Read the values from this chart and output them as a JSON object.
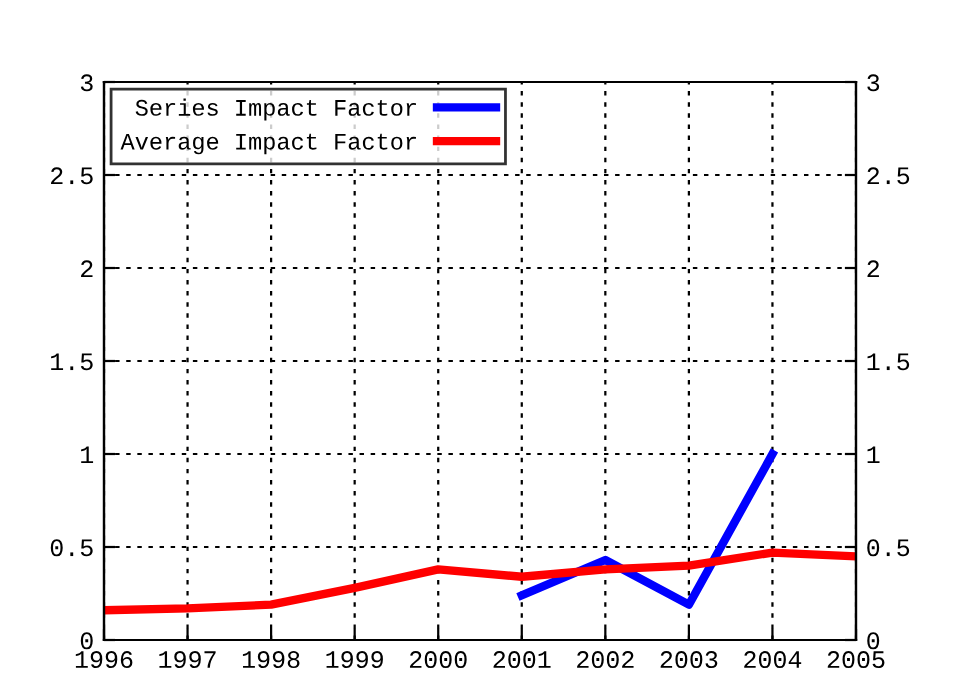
{
  "chart_data": {
    "type": "line",
    "x": [
      1996,
      1997,
      1998,
      1999,
      2000,
      2001,
      2002,
      2003,
      2004,
      2005
    ],
    "series": [
      {
        "name": "Series Impact Factor",
        "color": "#0000ff",
        "values": [
          null,
          null,
          null,
          null,
          null,
          0.24,
          0.43,
          0.19,
          1.0,
          null
        ]
      },
      {
        "name": "Average Impact Factor",
        "color": "#ff0000",
        "values": [
          0.16,
          0.17,
          0.19,
          0.28,
          0.38,
          0.34,
          0.38,
          0.4,
          0.47,
          0.45
        ]
      }
    ],
    "xlim": [
      1996,
      2005
    ],
    "xticks": [
      1996,
      1997,
      1998,
      1999,
      2000,
      2001,
      2002,
      2003,
      2004,
      2005
    ],
    "ylim": [
      0,
      3
    ],
    "yticks": [
      0,
      0.5,
      1,
      1.5,
      2,
      2.5,
      3
    ],
    "y2lim": [
      0,
      3
    ],
    "y2ticks": [
      0,
      0.5,
      1,
      1.5,
      2,
      2.5,
      3
    ],
    "grid": true,
    "legend": "top left",
    "line_style": "solid"
  }
}
